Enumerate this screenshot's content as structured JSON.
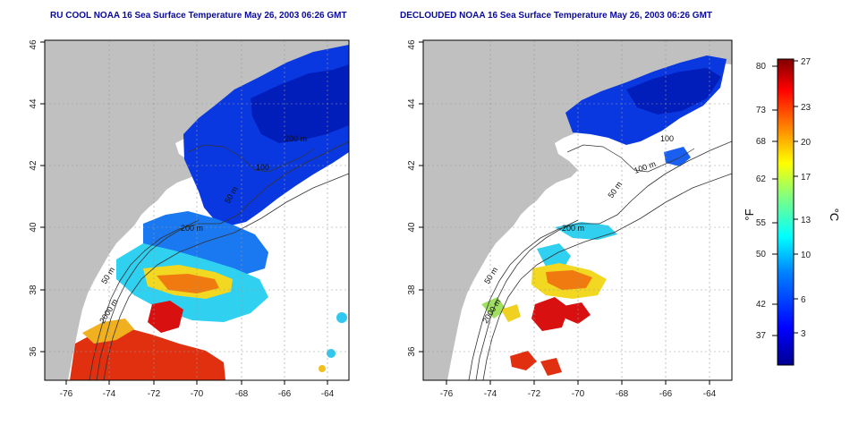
{
  "panels": [
    {
      "title": "RU COOL NOAA 16 Sea Surface Temperature May 26, 2003 06:26 GMT",
      "xticks": [
        "-76",
        "-74",
        "-72",
        "-70",
        "-68",
        "-66",
        "-64"
      ],
      "yticks": [
        "36",
        "38",
        "40",
        "42",
        "44",
        "46"
      ],
      "contour_labels": [
        "200 m",
        "50 m",
        "2000 m",
        "100",
        "200 m",
        "50 m"
      ]
    },
    {
      "title": "DECLOUDED NOAA 16 Sea Surface Temperature May 26, 2003 06:26 GMT",
      "xticks": [
        "-76",
        "-74",
        "-72",
        "-70",
        "-68",
        "-66",
        "-64"
      ],
      "yticks": [
        "36",
        "38",
        "40",
        "42",
        "44",
        "46"
      ],
      "contour_labels": [
        "100",
        "100 m",
        "50 m",
        "200 m",
        "50 m",
        "2000 m"
      ]
    }
  ],
  "colorbar": {
    "fahrenheit_label": "°F",
    "celsius_label": "°C",
    "fahrenheit_ticks": [
      "80",
      "73",
      "68",
      "62",
      "55",
      "50",
      "42",
      "37"
    ],
    "celsius_ticks": [
      "27",
      "23",
      "20",
      "17",
      "13",
      "10",
      "6",
      "3"
    ],
    "colors": [
      "#00008f",
      "#0000ff",
      "#0080ff",
      "#00ffff",
      "#80ff80",
      "#ffff00",
      "#ff8000",
      "#ff0000",
      "#800000"
    ]
  },
  "map_colors": {
    "land": "#c0c0c0",
    "ocean_missing": "#ffffff"
  }
}
